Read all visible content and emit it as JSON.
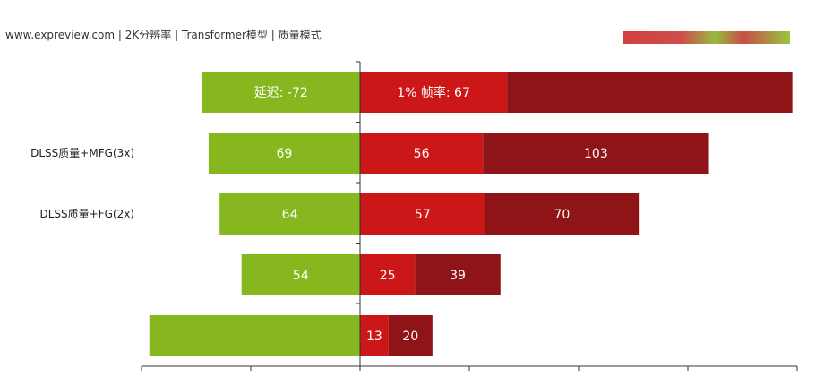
{
  "caption": "www.expreview.com | 2K分辨率 | Transformer模型 | 质量模式",
  "chart_data": {
    "type": "bar",
    "orientation": "horizontal-diverging",
    "categories": [
      "",
      "DLSS质量+MFG(3x)",
      "DLSS质量+FG(2x)",
      "",
      ""
    ],
    "series": [
      {
        "color": "#86b71f",
        "values": [
          72,
          69,
          64,
          54,
          96
        ],
        "labels": [
          "延迟: -72",
          "69",
          "64",
          "54",
          ""
        ]
      },
      {
        "color": "#cc1719",
        "values": [
          67,
          56,
          57,
          25,
          13
        ],
        "labels": [
          "1% 帧率: 67",
          "56",
          "57",
          "25",
          "13"
        ]
      },
      {
        "color": "#8f1417",
        "values": [
          130,
          103,
          70,
          39,
          20
        ],
        "labels": [
          "",
          "103",
          "70",
          "39",
          "20"
        ]
      }
    ],
    "grid": false
  },
  "colors": {
    "green": "#86b71f",
    "red": "#cc1719",
    "darkred": "#8f1417",
    "axis": "#333333"
  }
}
